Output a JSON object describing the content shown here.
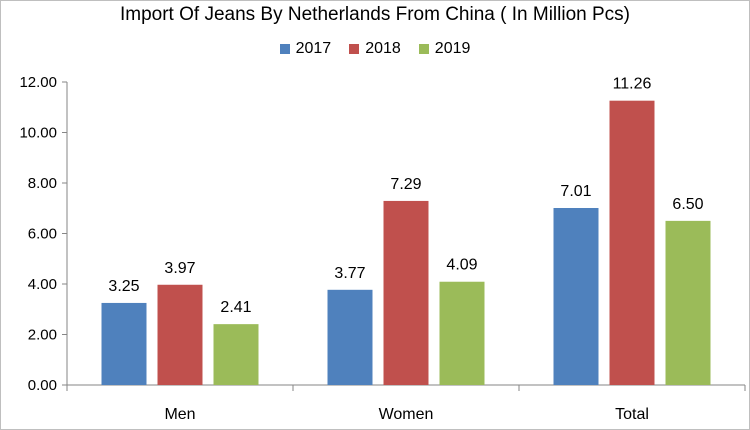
{
  "chart_data": {
    "type": "bar",
    "title": "Import Of Jeans By Netherlands From China ( In Million Pcs)",
    "categories": [
      "Men",
      "Women",
      "Total"
    ],
    "series": [
      {
        "name": "2017",
        "values": [
          3.25,
          3.77,
          7.01
        ],
        "color": "#4f81bd"
      },
      {
        "name": "2018",
        "values": [
          3.97,
          7.29,
          11.26
        ],
        "color": "#c0504d"
      },
      {
        "name": "2019",
        "values": [
          2.41,
          4.09,
          6.5
        ],
        "color": "#9bbb59"
      }
    ],
    "value_labels": [
      [
        "3.25",
        "3.77",
        "7.01"
      ],
      [
        "3.97",
        "7.29",
        "11.26"
      ],
      [
        "2.41",
        "4.09",
        "6.50"
      ]
    ],
    "ylim": [
      0,
      12
    ],
    "yticks": [
      "0.00",
      "2.00",
      "4.00",
      "6.00",
      "8.00",
      "10.00",
      "12.00"
    ],
    "legend": "top",
    "grid": false
  }
}
